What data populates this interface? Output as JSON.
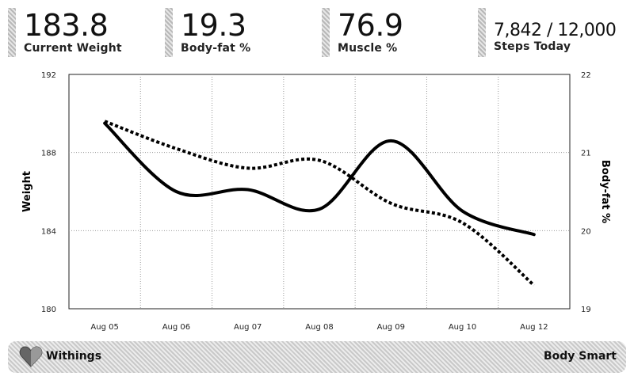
{
  "stats": [
    {
      "value": "183.8",
      "label": "Current Weight"
    },
    {
      "value": "19.3",
      "label": "Body-fat %"
    },
    {
      "value": "76.9",
      "label": "Muscle %"
    },
    {
      "value": "7,842 / 12,000",
      "label": "Steps Today"
    }
  ],
  "footer": {
    "brand": "Withings",
    "product": "Body Smart",
    "logo_icon": "heart-icon"
  },
  "chart_data": {
    "type": "line",
    "categories": [
      "Aug 05",
      "Aug 06",
      "Aug 07",
      "Aug 08",
      "Aug 09",
      "Aug 10",
      "Aug 12"
    ],
    "ylabel": "Weight",
    "y2label": "Body-fat %",
    "ylim": [
      180,
      192
    ],
    "y2lim": [
      19,
      22
    ],
    "yticks": [
      180,
      184,
      188,
      192
    ],
    "y2ticks": [
      19,
      20,
      21,
      22
    ],
    "grid": true,
    "series": [
      {
        "axis": "left",
        "style": "solid",
        "color": "#000000",
        "values": [
          189.5,
          186.0,
          186.1,
          185.1,
          188.6,
          185.0,
          183.8
        ]
      },
      {
        "axis": "right",
        "style": "dotted",
        "color": "#000000",
        "values": [
          21.4,
          21.05,
          20.8,
          20.9,
          20.35,
          20.1,
          19.3
        ]
      }
    ]
  }
}
